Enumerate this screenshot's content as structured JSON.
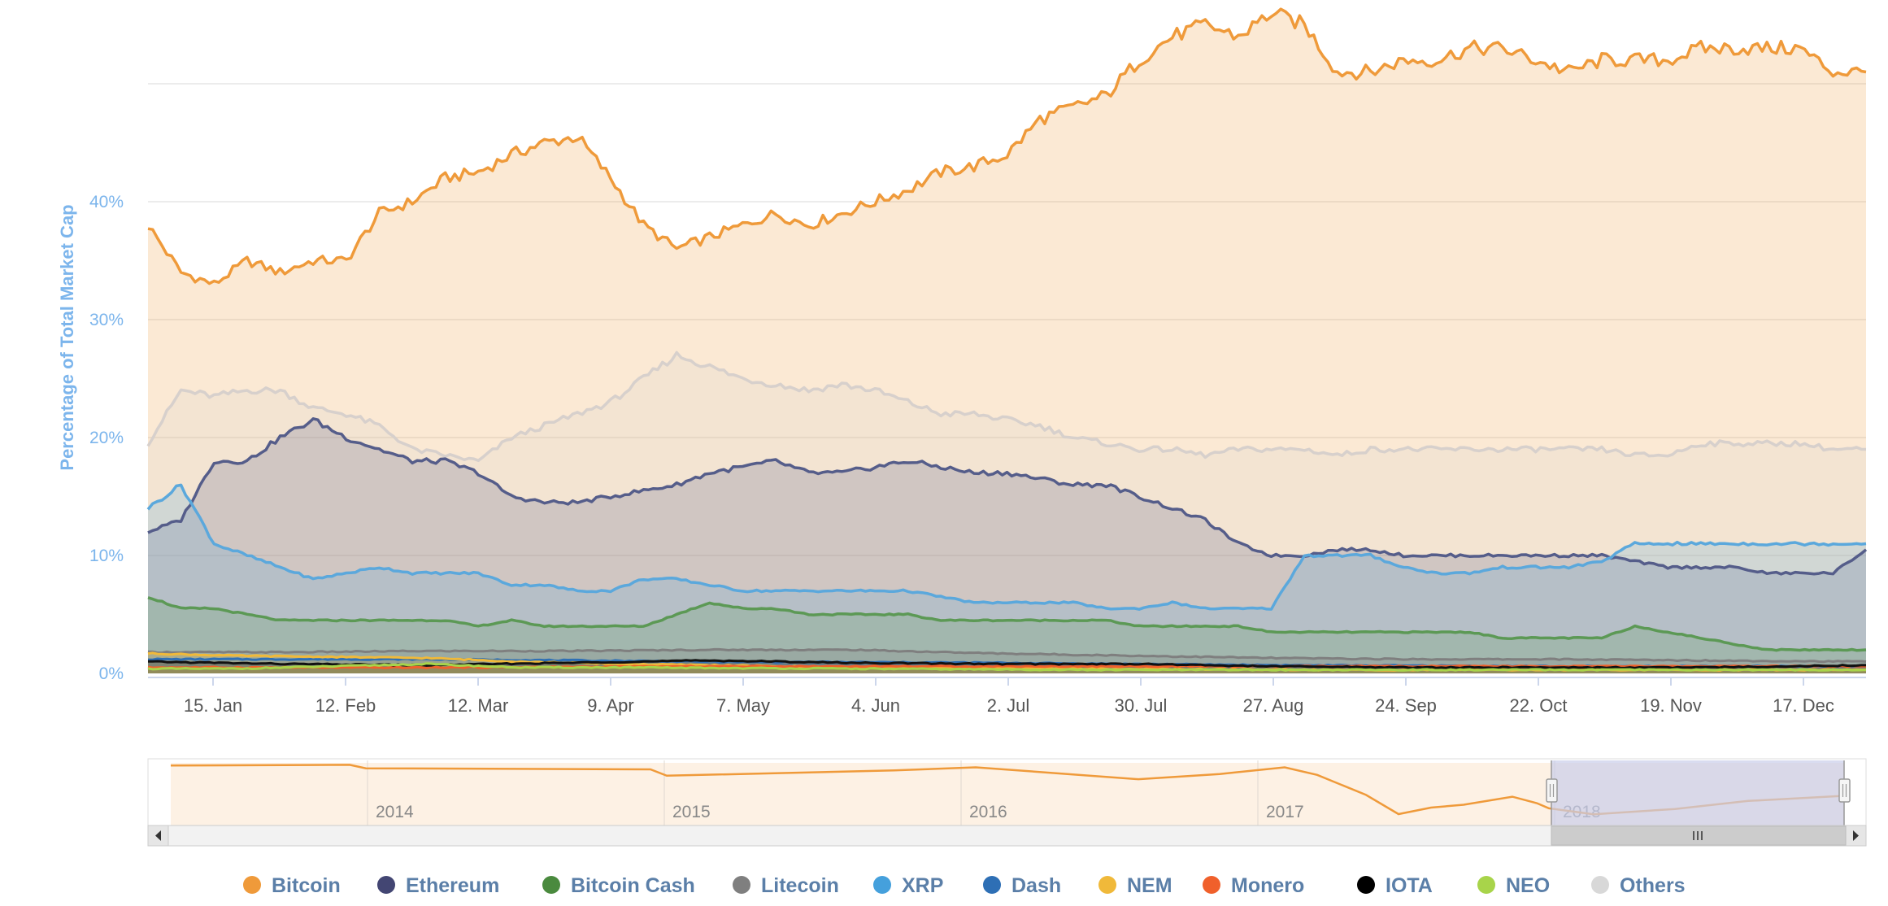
{
  "chart_data": {
    "type": "area",
    "xlabel": "",
    "ylabel": "Percentage of Total Market Cap",
    "x_ticks": [
      "15. Jan",
      "12. Feb",
      "12. Mar",
      "9. Apr",
      "7. May",
      "4. Jun",
      "2. Jul",
      "30. Jul",
      "27. Aug",
      "24. Sep",
      "22. Oct",
      "19. Nov",
      "17. Dec"
    ],
    "y_ticks": [
      "0%",
      "10%",
      "20%",
      "30%",
      "40%"
    ],
    "ylim": [
      0,
      55
    ],
    "x_range_days": [
      1,
      365
    ],
    "grid": true,
    "legend": "bottom",
    "series": [
      {
        "name": "Bitcoin",
        "color": "#ef9a3a",
        "x": [
          1,
          8,
          15,
          22,
          29,
          36,
          43,
          50,
          57,
          64,
          71,
          78,
          85,
          92,
          99,
          106,
          113,
          120,
          127,
          134,
          141,
          148,
          155,
          162,
          169,
          176,
          183,
          190,
          197,
          204,
          211,
          218,
          225,
          232,
          239,
          246,
          253,
          260,
          267,
          274,
          281,
          288,
          295,
          302,
          309,
          316,
          323,
          330,
          337,
          344,
          351,
          358,
          365
        ],
        "y": [
          38,
          34,
          33,
          35,
          34,
          35,
          35,
          39,
          40,
          42,
          42.5,
          44,
          45,
          45.5,
          42,
          38,
          36,
          37,
          38,
          39,
          38,
          39,
          40,
          41,
          42.5,
          43,
          44,
          47,
          48,
          49,
          52,
          54,
          55,
          54,
          56,
          55,
          51,
          51,
          52,
          52,
          53,
          53,
          52,
          51,
          52,
          52,
          52,
          53,
          53,
          53,
          53,
          51,
          51
        ]
      },
      {
        "name": "Others",
        "color": "#d7d0cc",
        "x": [
          1,
          8,
          15,
          22,
          29,
          36,
          43,
          50,
          57,
          64,
          71,
          78,
          85,
          92,
          99,
          106,
          113,
          120,
          127,
          134,
          141,
          148,
          155,
          162,
          169,
          176,
          183,
          190,
          197,
          204,
          211,
          218,
          225,
          232,
          239,
          246,
          253,
          260,
          267,
          274,
          281,
          288,
          295,
          302,
          309,
          316,
          323,
          330,
          337,
          344,
          351,
          358,
          365
        ],
        "y": [
          19.5,
          24,
          23.5,
          24,
          24,
          22.5,
          22,
          21,
          19,
          18.5,
          18,
          20,
          21,
          22,
          23,
          25,
          27,
          26,
          25,
          24.5,
          24,
          24.5,
          24,
          23,
          22,
          22,
          21.5,
          21,
          20,
          19.5,
          19,
          19,
          18.5,
          19,
          19,
          19,
          18.5,
          19,
          19,
          19,
          19,
          19,
          19,
          19,
          19,
          18.5,
          18.5,
          19.5,
          19.5,
          19.5,
          19.5,
          19,
          19
        ]
      },
      {
        "name": "Ethereum",
        "color": "#555d8a",
        "x": [
          1,
          8,
          15,
          22,
          29,
          36,
          43,
          50,
          57,
          64,
          71,
          78,
          85,
          92,
          99,
          106,
          113,
          120,
          127,
          134,
          141,
          148,
          155,
          162,
          169,
          176,
          183,
          190,
          197,
          204,
          211,
          218,
          225,
          232,
          239,
          246,
          253,
          260,
          267,
          274,
          281,
          288,
          295,
          302,
          309,
          316,
          323,
          330,
          337,
          344,
          351,
          358,
          365
        ],
        "y": [
          12,
          13,
          18,
          18,
          20,
          21.5,
          20,
          19,
          18,
          18,
          17,
          15,
          14.5,
          14.5,
          15,
          15.5,
          16,
          17,
          17.5,
          18,
          17,
          17,
          17.5,
          18,
          17.5,
          17,
          17,
          16.5,
          16,
          16,
          15,
          14,
          13,
          11,
          10,
          10,
          10.5,
          10.5,
          10,
          10,
          10,
          10,
          10,
          10,
          10,
          9.5,
          9,
          9,
          9,
          8.5,
          8.5,
          8.5,
          10.5
        ]
      },
      {
        "name": "XRP",
        "color": "#5ba8dc",
        "x": [
          1,
          8,
          15,
          22,
          29,
          36,
          43,
          50,
          57,
          64,
          71,
          78,
          85,
          92,
          99,
          106,
          113,
          120,
          127,
          134,
          141,
          148,
          155,
          162,
          169,
          176,
          183,
          190,
          197,
          204,
          211,
          218,
          225,
          232,
          239,
          246,
          253,
          260,
          267,
          274,
          281,
          288,
          295,
          302,
          309,
          316,
          323,
          330,
          337,
          344,
          351,
          358,
          365
        ],
        "y": [
          14,
          16,
          11,
          10,
          9,
          8,
          8.5,
          9,
          8.5,
          8.5,
          8.5,
          7.5,
          7.5,
          7,
          7,
          8,
          8,
          7.5,
          7,
          7,
          7,
          7,
          7,
          7,
          6.5,
          6,
          6,
          6,
          6,
          5.5,
          5.5,
          6,
          5.5,
          5.5,
          5.5,
          10,
          10,
          10,
          9,
          8.5,
          8.5,
          9,
          9,
          9,
          9.5,
          11,
          11,
          11,
          11,
          11,
          11,
          11,
          11
        ]
      },
      {
        "name": "Bitcoin Cash",
        "color": "#5c9955",
        "x": [
          1,
          8,
          15,
          22,
          29,
          36,
          43,
          50,
          57,
          64,
          71,
          78,
          85,
          92,
          99,
          106,
          113,
          120,
          127,
          134,
          141,
          148,
          155,
          162,
          169,
          176,
          183,
          190,
          197,
          204,
          211,
          218,
          225,
          232,
          239,
          246,
          253,
          260,
          267,
          274,
          281,
          288,
          295,
          302,
          309,
          316,
          323,
          330,
          337,
          344,
          351,
          358,
          365
        ],
        "y": [
          6.5,
          5.5,
          5.5,
          5,
          4.5,
          4.5,
          4.5,
          4.5,
          4.5,
          4.5,
          4,
          4.5,
          4,
          4,
          4,
          4,
          5,
          6,
          5.5,
          5.5,
          5,
          5,
          5,
          5,
          4.5,
          4.5,
          4.5,
          4.5,
          4.5,
          4.5,
          4,
          4,
          4,
          4,
          3.5,
          3.5,
          3.5,
          3.5,
          3.5,
          3.5,
          3.5,
          3,
          3,
          3,
          3,
          4,
          3.5,
          3,
          2.5,
          2,
          2,
          2,
          2
        ]
      },
      {
        "name": "Litecoin",
        "color": "#7f7f7f",
        "x": [
          1,
          30,
          60,
          90,
          120,
          150,
          180,
          210,
          240,
          270,
          300,
          330,
          365
        ],
        "y": [
          1.8,
          1.8,
          1.9,
          1.9,
          2,
          2,
          1.7,
          1.5,
          1.3,
          1.2,
          1.2,
          1.1,
          1
        ]
      },
      {
        "name": "Dash",
        "color": "#2e6fb5",
        "x": [
          1,
          60,
          120,
          180,
          240,
          300,
          365
        ],
        "y": [
          1.2,
          1.2,
          1.0,
          0.9,
          0.7,
          0.6,
          0.6
        ]
      },
      {
        "name": "NEM",
        "color": "#f0b93a",
        "x": [
          1,
          10,
          20,
          40,
          60,
          80,
          100,
          120,
          150,
          200,
          250,
          300,
          365
        ],
        "y": [
          1.7,
          1.6,
          1.5,
          1.4,
          1.3,
          1,
          0.8,
          0.7,
          0.5,
          0.4,
          0.3,
          0.3,
          0.3
        ]
      },
      {
        "name": "Monero",
        "color": "#f0602b",
        "x": [
          1,
          60,
          120,
          180,
          240,
          300,
          365
        ],
        "y": [
          0.5,
          0.5,
          0.6,
          0.6,
          0.6,
          0.6,
          0.6
        ]
      },
      {
        "name": "IOTA",
        "color": "#111111",
        "x": [
          1,
          30,
          60,
          90,
          120,
          150,
          180,
          210,
          240,
          270,
          300,
          330,
          365
        ],
        "y": [
          1,
          0.8,
          0.7,
          0.9,
          1.1,
          0.9,
          0.8,
          0.8,
          0.6,
          0.5,
          0.5,
          0.5,
          0.7
        ]
      },
      {
        "name": "NEO",
        "color": "#a8d44a",
        "x": [
          1,
          20,
          40,
          60,
          80,
          100,
          150,
          200,
          250,
          300,
          365
        ],
        "y": [
          0.4,
          0.4,
          0.6,
          0.8,
          0.5,
          0.5,
          0.4,
          0.3,
          0.3,
          0.3,
          0.3
        ]
      }
    ],
    "navigator": {
      "years": [
        "2014",
        "2015",
        "2016",
        "2017",
        "2018"
      ]
    }
  },
  "legend_items": [
    {
      "name": "Bitcoin",
      "color": "#ef9a3a"
    },
    {
      "name": "Ethereum",
      "color": "#434673"
    },
    {
      "name": "Bitcoin Cash",
      "color": "#4a8a3e"
    },
    {
      "name": "Litecoin",
      "color": "#7f7f7f"
    },
    {
      "name": "XRP",
      "color": "#45a0dc"
    },
    {
      "name": "Dash",
      "color": "#2e6fb5"
    },
    {
      "name": "NEM",
      "color": "#f0b93a"
    },
    {
      "name": "Monero",
      "color": "#f0602b"
    },
    {
      "name": "IOTA",
      "color": "#000000"
    },
    {
      "name": "NEO",
      "color": "#a8d44a"
    },
    {
      "name": "Others",
      "color": "#d8d8d8"
    }
  ]
}
